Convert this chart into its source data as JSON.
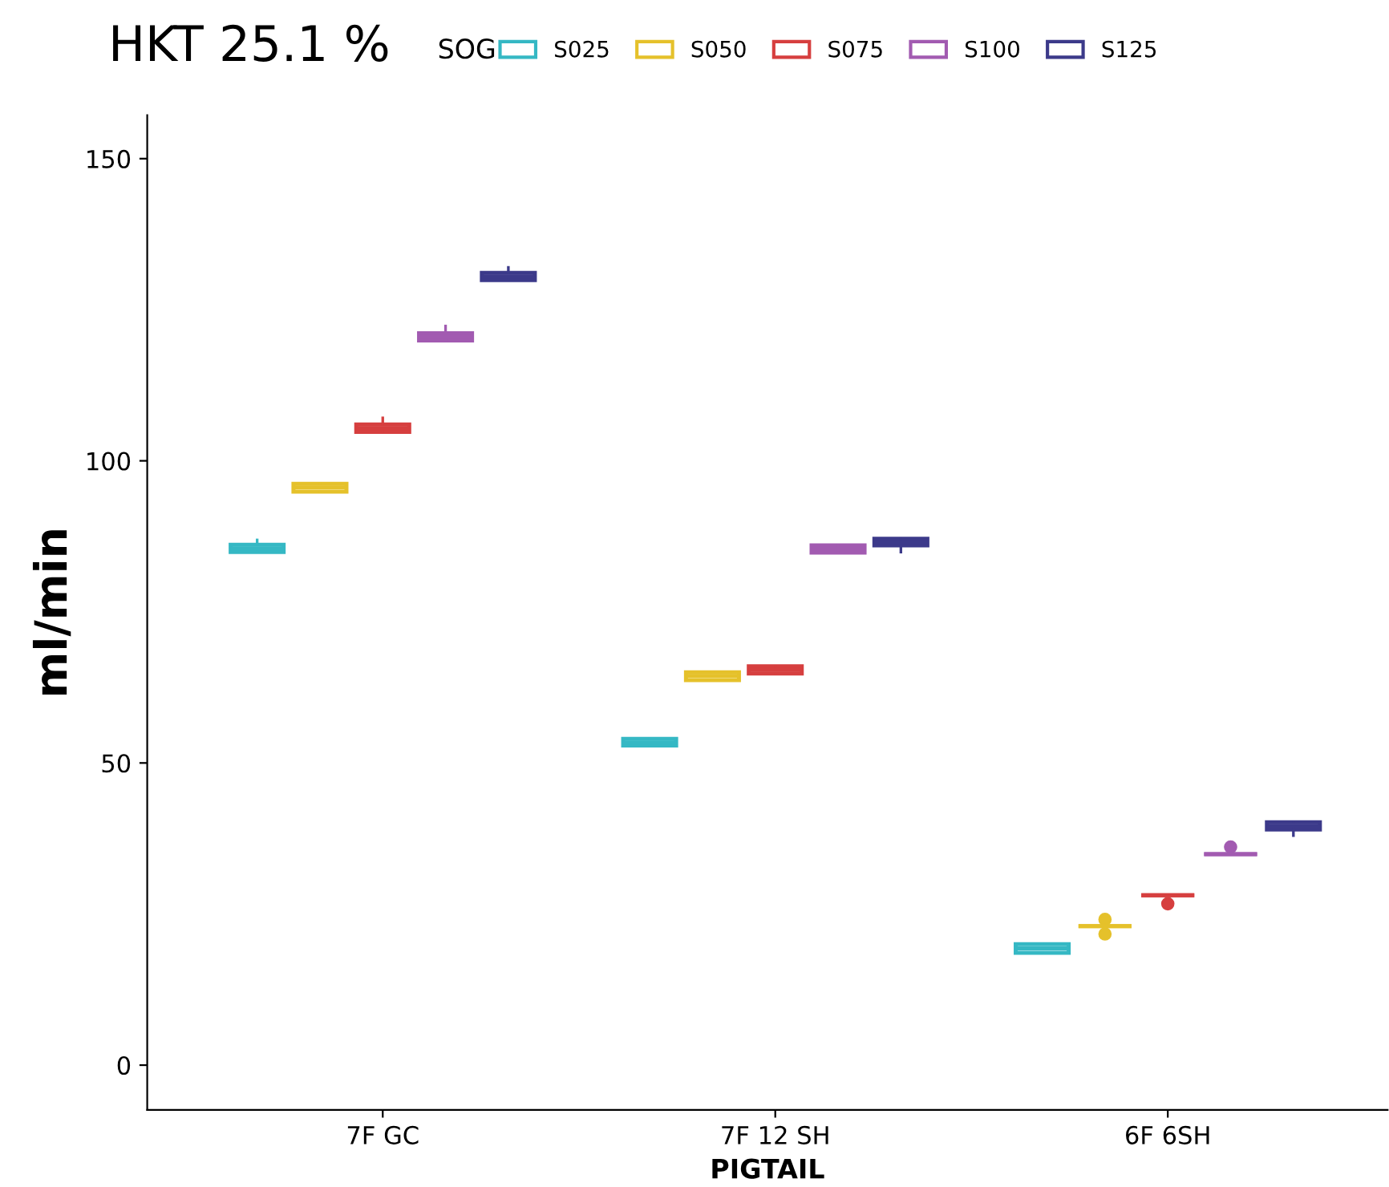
{
  "chart_data": {
    "type": "box",
    "title": "HKT 25.1 %",
    "xlabel": "PIGTAIL",
    "ylabel": "ml/min",
    "legend_title": "SOG",
    "legend": "top",
    "grid": false,
    "categories": [
      "7F GC",
      "7F 12 SH",
      "6F 6SH"
    ],
    "ylim": [
      -7.4,
      157.2
    ],
    "yticks": [
      0,
      50,
      100,
      150
    ],
    "series": [
      {
        "name": "S025",
        "color": "#35b8c4",
        "boxes": [
          {
            "low": 84.9,
            "q1": 84.9,
            "median": 85.5,
            "q3": 86.1,
            "high": 86.9
          },
          {
            "low": 52.9,
            "q1": 52.9,
            "median": 53.4,
            "q3": 54.0,
            "high": 54.0
          },
          {
            "low": 18.6,
            "q1": 18.6,
            "median": 19.3,
            "q3": 20.0,
            "high": 20.0
          }
        ]
      },
      {
        "name": "S050",
        "color": "#e5c12b",
        "boxes": [
          {
            "low": 94.9,
            "q1": 94.9,
            "median": 95.6,
            "q3": 96.2,
            "high": 96.2
          },
          {
            "low": 63.7,
            "q1": 63.7,
            "median": 64.4,
            "q3": 65.0,
            "high": 65.0
          },
          {
            "low": 23.0,
            "q1": 23.0,
            "median": 23.0,
            "q3": 23.0,
            "high": 23.0,
            "outliers": [
              24.1,
              21.7
            ]
          }
        ]
      },
      {
        "name": "S075",
        "color": "#d63f3f",
        "boxes": [
          {
            "low": 104.8,
            "q1": 104.8,
            "median": 105.4,
            "q3": 106.0,
            "high": 107.1
          },
          {
            "low": 64.8,
            "q1": 64.8,
            "median": 65.4,
            "q3": 66.0,
            "high": 66.0
          },
          {
            "low": 28.1,
            "q1": 28.1,
            "median": 28.1,
            "q3": 28.1,
            "high": 28.1,
            "outliers": [
              26.7
            ]
          }
        ]
      },
      {
        "name": "S100",
        "color": "#a25bb1",
        "boxes": [
          {
            "low": 119.9,
            "q1": 119.9,
            "median": 120.5,
            "q3": 121.1,
            "high": 122.3
          },
          {
            "low": 84.8,
            "q1": 84.8,
            "median": 85.4,
            "q3": 86.0,
            "high": 86.0
          },
          {
            "low": 34.9,
            "q1": 34.9,
            "median": 34.9,
            "q3": 34.9,
            "high": 34.9,
            "outliers": [
              36.1
            ]
          }
        ]
      },
      {
        "name": "S125",
        "color": "#3c3a8a",
        "boxes": [
          {
            "low": 129.9,
            "q1": 129.9,
            "median": 130.5,
            "q3": 131.1,
            "high": 132.0
          },
          {
            "low": 84.9,
            "q1": 86.0,
            "median": 86.5,
            "q3": 87.1,
            "high": 87.1
          },
          {
            "low": 38.0,
            "q1": 39.0,
            "median": 39.6,
            "q3": 40.2,
            "high": 40.2
          }
        ]
      }
    ]
  }
}
